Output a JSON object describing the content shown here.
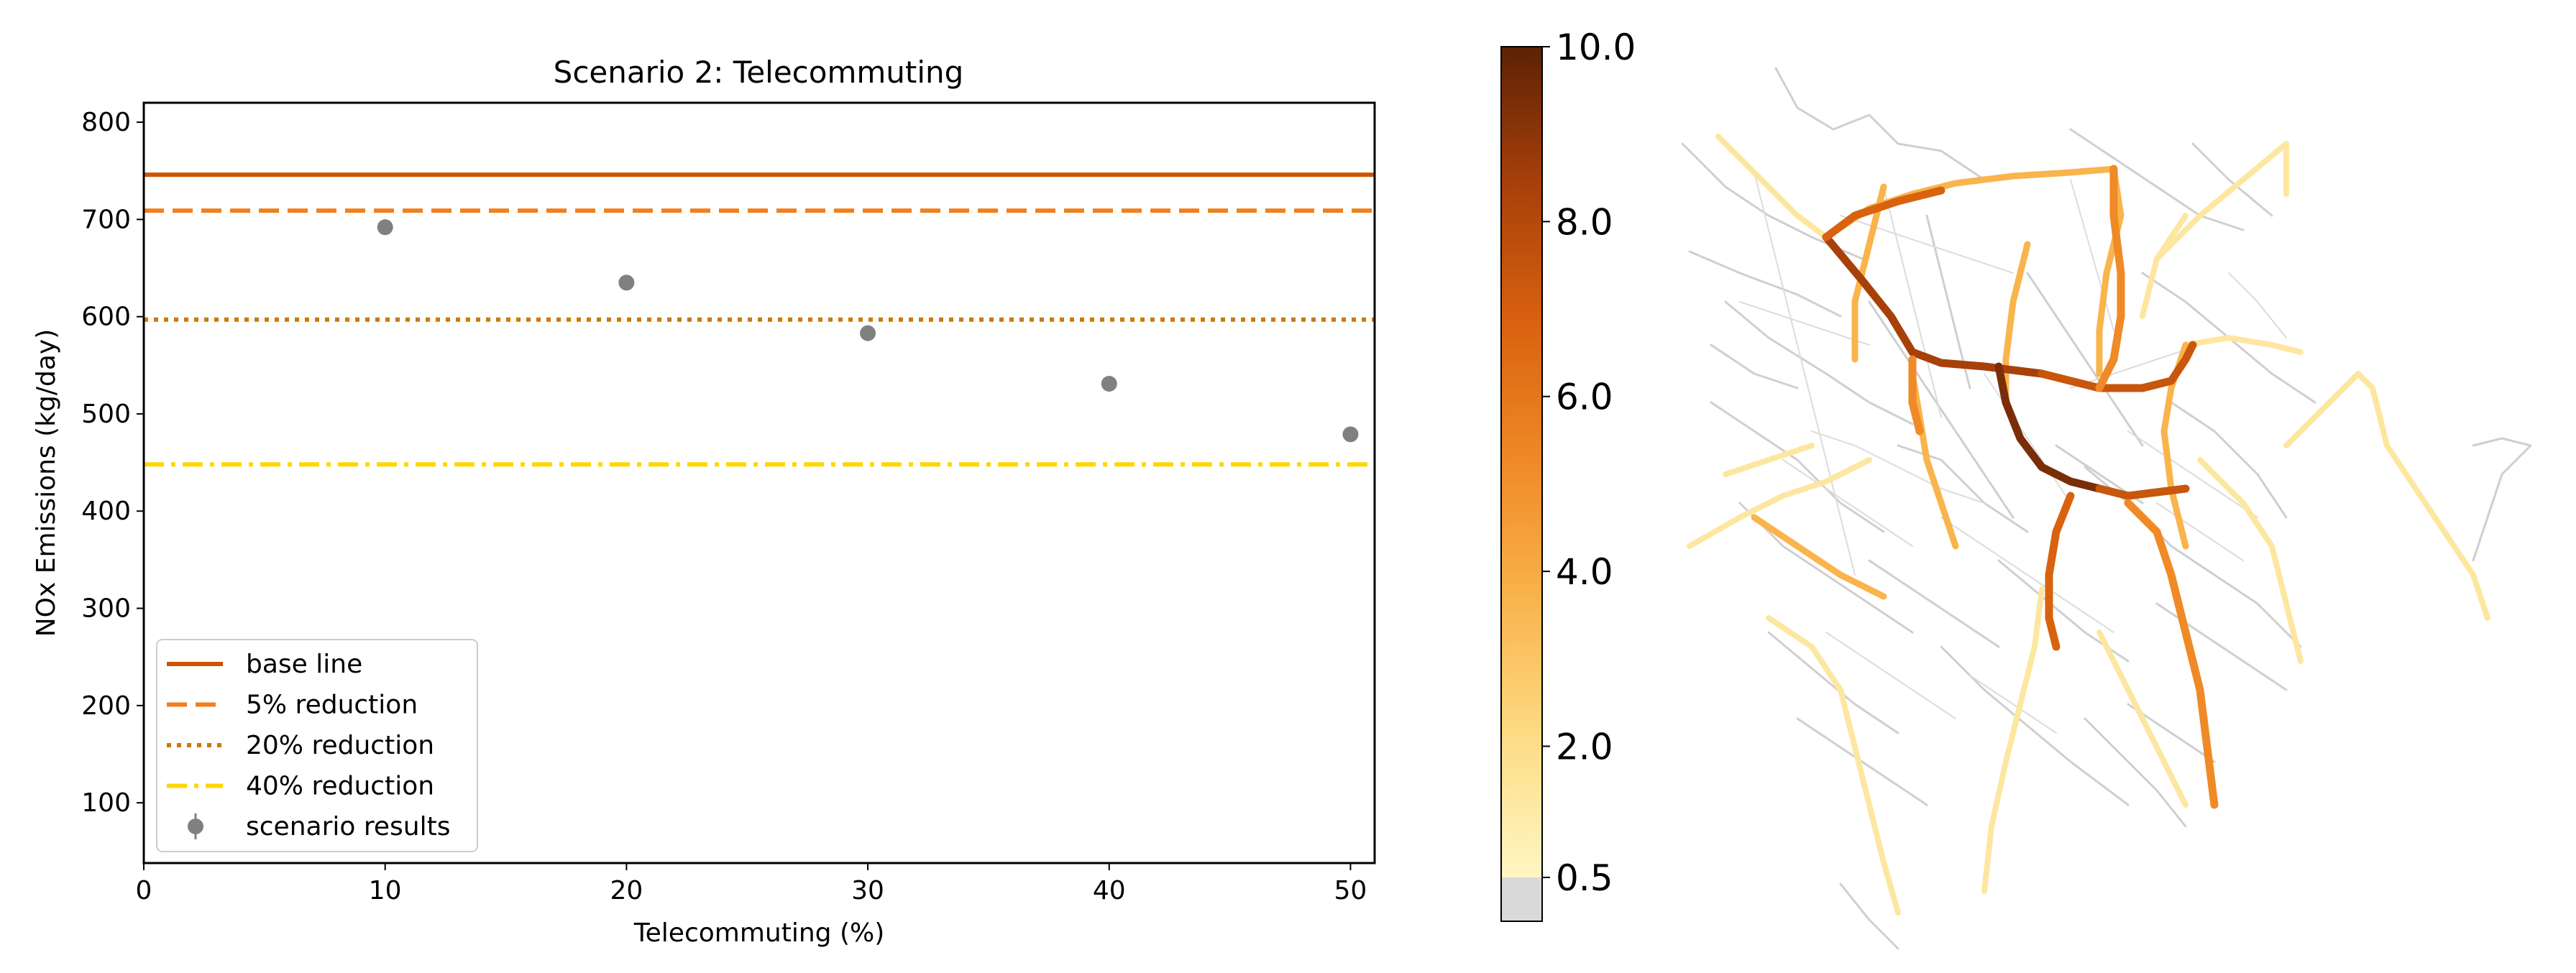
{
  "chart_data": [
    {
      "type": "scatter",
      "title": "Scenario 2: Telecommuting",
      "xlabel": "Telecommuting (%)",
      "ylabel": "NOx Emissions (kg/day)",
      "xlim": [
        0,
        51
      ],
      "ylim": [
        38,
        820
      ],
      "xticks": [
        0,
        10,
        20,
        30,
        40,
        50
      ],
      "yticks": [
        100,
        200,
        300,
        400,
        500,
        600,
        700,
        800
      ],
      "reference_lines": [
        {
          "name": "base line",
          "value": 746,
          "style": "solid",
          "color": "#cc5500"
        },
        {
          "name": "5% reduction",
          "value": 709,
          "style": "dashed",
          "color": "#f07f1e"
        },
        {
          "name": "20% reduction",
          "value": 597,
          "style": "dotted",
          "color": "#cc7a00"
        },
        {
          "name": "40% reduction",
          "value": 448,
          "style": "dashdot",
          "color": "#ffd700"
        }
      ],
      "series": [
        {
          "name": "scenario results",
          "color": "#808080",
          "x": [
            10,
            20,
            30,
            40,
            50
          ],
          "y": [
            692,
            635,
            583,
            531,
            479
          ]
        }
      ],
      "legend_location": "lower left"
    },
    {
      "type": "map",
      "description_kind": "road network emissions map",
      "colorbar": {
        "min": 0.5,
        "max": 10.0,
        "tick_labels": [
          "10.0",
          "8.0",
          "6.0",
          "4.0",
          "2.0",
          "0.5"
        ],
        "tick_values": [
          10.0,
          8.0,
          6.0,
          4.0,
          2.0,
          0.5
        ],
        "colors": [
          "#fff6c2",
          "#fddc86",
          "#f9b44c",
          "#ef8a27",
          "#d9620f",
          "#a8400a",
          "#5c2205"
        ],
        "under_color": "#d9d9d9"
      }
    }
  ]
}
